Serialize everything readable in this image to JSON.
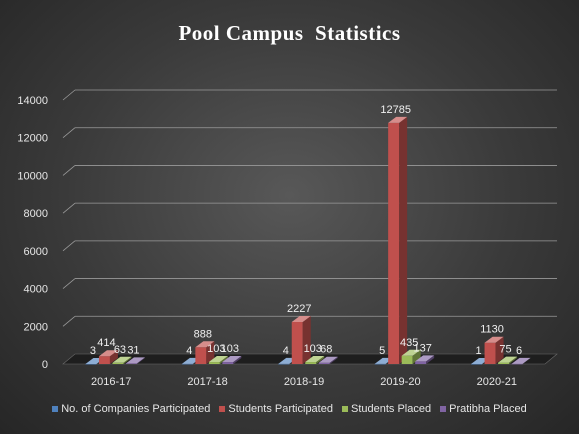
{
  "chart_data": {
    "type": "bar",
    "title": "Pool Campus  Statistics",
    "categories": [
      "2016-17",
      "2017-18",
      "2018-19",
      "2019-20",
      "2020-21"
    ],
    "series": [
      {
        "name": "No. of Companies Participated",
        "color": "#4f81bd",
        "values": [
          3,
          4,
          4,
          5,
          1
        ],
        "labels": [
          "3",
          "4",
          "4",
          "5",
          "1"
        ]
      },
      {
        "name": "Students Participated",
        "color": "#c0504d",
        "values": [
          414,
          888,
          2227,
          12785,
          1130
        ],
        "labels": [
          "414",
          "888",
          "2227",
          "12785",
          "1130"
        ]
      },
      {
        "name": "Students Placed",
        "color": "#9bbb59",
        "values": [
          63,
          103,
          103,
          435,
          75
        ],
        "labels": [
          "63",
          "103",
          "103",
          "435",
          "75"
        ]
      },
      {
        "name": "Pratibha Placed",
        "color": "#8064a2",
        "values": [
          31,
          103,
          68,
          137,
          6
        ],
        "labels": [
          "31",
          "103",
          "68",
          "137",
          "6"
        ]
      }
    ],
    "ylim": [
      0,
      14000
    ],
    "yticks": [
      0,
      2000,
      4000,
      6000,
      8000,
      10000,
      12000,
      14000
    ],
    "grid": true,
    "legend_position": "bottom",
    "style": "3d-column"
  }
}
